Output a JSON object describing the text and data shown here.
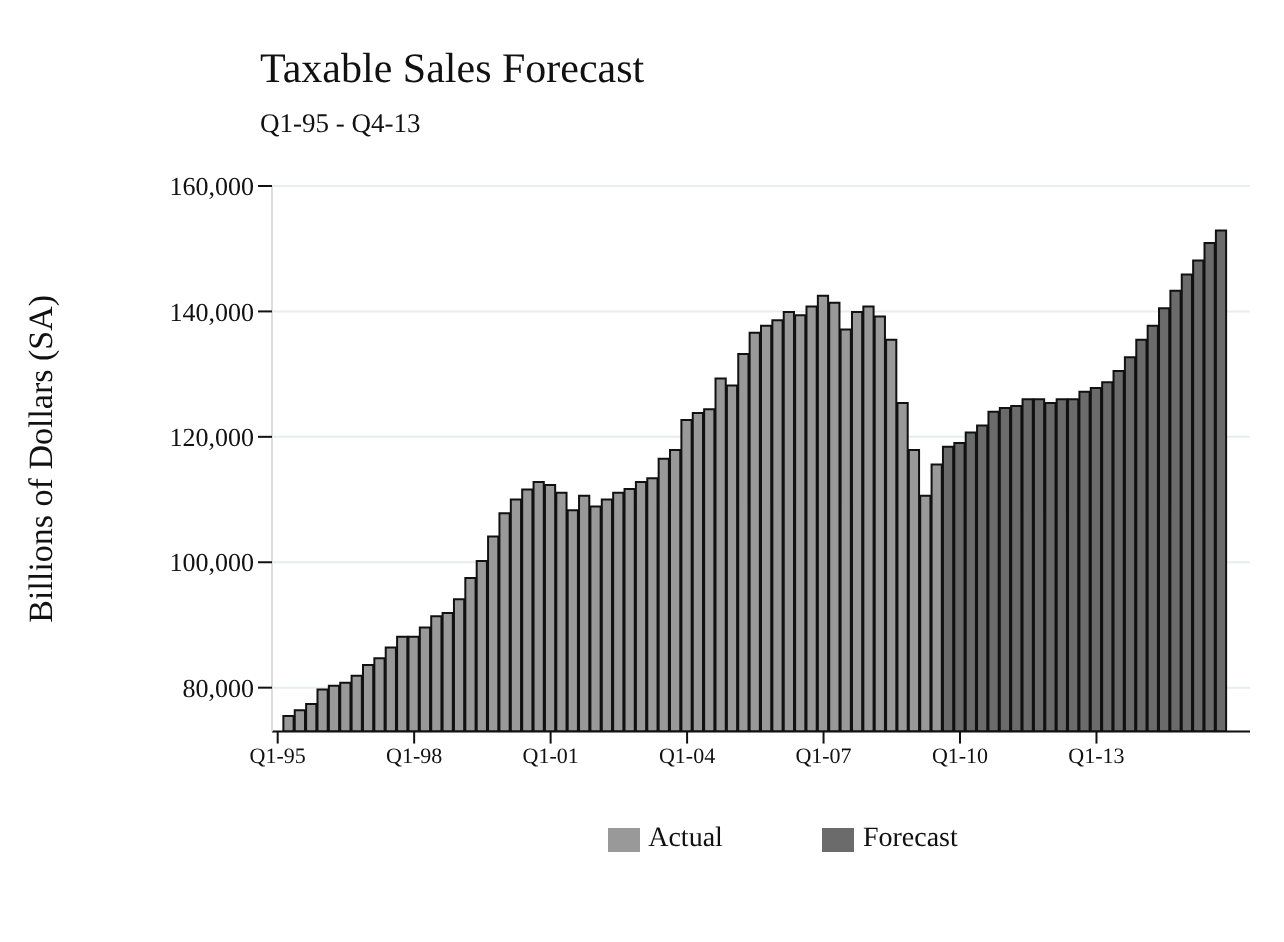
{
  "chart_data": {
    "type": "bar",
    "title": "Taxable Sales Forecast",
    "subtitle": "Q1-95 - Q4-13",
    "ylabel": "Billions of Dollars (SA)",
    "categories": [
      "Q1-95",
      null,
      null,
      null,
      null,
      null,
      null,
      null,
      null,
      null,
      null,
      null,
      "Q1-98",
      null,
      null,
      null,
      null,
      null,
      null,
      null,
      null,
      null,
      null,
      null,
      "Q1-01",
      null,
      null,
      null,
      null,
      null,
      null,
      null,
      null,
      null,
      null,
      null,
      "Q1-04",
      null,
      null,
      null,
      null,
      null,
      null,
      null,
      null,
      null,
      null,
      null,
      "Q1-07",
      null,
      null,
      null,
      null,
      null,
      null,
      null,
      null,
      null,
      null,
      null,
      "Q1-10",
      null,
      null,
      null,
      null,
      null,
      null,
      null,
      null,
      null,
      null,
      null,
      "Q1-13",
      null,
      null,
      null,
      null,
      null,
      null,
      null,
      null,
      null,
      null,
      null
    ],
    "series": [
      {
        "name": "Actual",
        "color": "#999999",
        "values": [
          null,
          75500,
          76400,
          77400,
          79700,
          80300,
          80800,
          81900,
          83600,
          84700,
          86400,
          88100,
          88100,
          89600,
          91400,
          91900,
          94100,
          97500,
          100200,
          104100,
          107800,
          110000,
          111600,
          112800,
          112300,
          111100,
          108300,
          110600,
          108900,
          110000,
          111100,
          111700,
          112800,
          113400,
          116500,
          117900,
          122700,
          123800,
          124400,
          129300,
          128200,
          133200,
          136600,
          137700,
          138600,
          139900,
          139400,
          140800,
          142500,
          141400,
          137100,
          139900,
          140800,
          139200,
          135500,
          125400,
          117900,
          110600,
          115600,
          null,
          null,
          null,
          null,
          null,
          null,
          null,
          null,
          null,
          null,
          null,
          null,
          null,
          null,
          null,
          null,
          null,
          null,
          null,
          null,
          null,
          null,
          null,
          null,
          null
        ]
      },
      {
        "name": "Forecast",
        "color": "#6b6b6b",
        "values": [
          null,
          null,
          null,
          null,
          null,
          null,
          null,
          null,
          null,
          null,
          null,
          null,
          null,
          null,
          null,
          null,
          null,
          null,
          null,
          null,
          null,
          null,
          null,
          null,
          null,
          null,
          null,
          null,
          null,
          null,
          null,
          null,
          null,
          null,
          null,
          null,
          null,
          null,
          null,
          null,
          null,
          null,
          null,
          null,
          null,
          null,
          null,
          null,
          null,
          null,
          null,
          null,
          null,
          null,
          null,
          null,
          null,
          null,
          null,
          118400,
          119000,
          120700,
          121800,
          124000,
          124600,
          124900,
          126000,
          126000,
          125400,
          126000,
          126000,
          127200,
          127800,
          128700,
          130500,
          132700,
          135500,
          137700,
          140500,
          143300,
          145900,
          148100,
          150900,
          152900
        ]
      }
    ],
    "ylim": [
      73000,
      160000
    ],
    "yticks": [
      {
        "value": 80000,
        "label": "80,000"
      },
      {
        "value": 100000,
        "label": "100,000"
      },
      {
        "value": 120000,
        "label": "120,000"
      },
      {
        "value": 140000,
        "label": "140,000"
      },
      {
        "value": 160000,
        "label": "160,000"
      }
    ],
    "grid": "y",
    "legend": "bottom"
  }
}
